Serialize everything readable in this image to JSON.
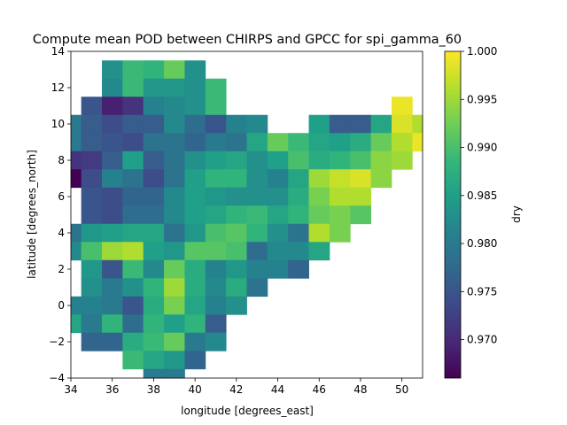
{
  "chart_data": {
    "type": "heatmap",
    "title": "Compute mean POD between CHIRPS and GPCC for spi_gamma_60",
    "xlabel": "longitude [degrees_east]",
    "ylabel": "latitude [degrees_north]",
    "xlim": [
      34,
      51
    ],
    "ylim": [
      -4,
      14
    ],
    "x_ticks": [
      "34",
      "36",
      "38",
      "40",
      "42",
      "44",
      "46",
      "48",
      "50"
    ],
    "y_ticks": [
      "−4",
      "−2",
      "0",
      "2",
      "4",
      "6",
      "8",
      "10",
      "12",
      "14"
    ],
    "cell_size": 1,
    "grid": false,
    "colormap": "viridis",
    "colorbar": {
      "label": "dry",
      "range": [
        0.966,
        1.0
      ],
      "ticks": [
        "0.970",
        "0.975",
        "0.980",
        "0.985",
        "0.990",
        "0.995",
        "1.000"
      ]
    },
    "rows": [
      {
        "lat": 13,
        "lon_start": 36,
        "values": [
          0.983,
          0.989,
          0.988,
          0.992,
          0.983
        ]
      },
      {
        "lat": 12,
        "lon_start": 36,
        "values": [
          0.982,
          0.989,
          0.984,
          0.984,
          0.983,
          0.989
        ]
      },
      {
        "lat": 11,
        "lon_start": 35,
        "values": [
          0.975,
          0.969,
          0.971,
          0.981,
          0.982,
          0.983,
          0.989,
          null,
          null,
          null,
          null,
          null,
          null,
          null,
          null,
          0.999
        ]
      },
      {
        "lat": 10,
        "lon_start": 34,
        "values": [
          0.98,
          0.976,
          0.974,
          0.976,
          0.976,
          0.982,
          0.978,
          0.975,
          0.981,
          0.982,
          null,
          null,
          0.985,
          0.976,
          0.976,
          0.986,
          0.998,
          0.996
        ]
      },
      {
        "lat": 9,
        "lon_start": 34,
        "values": [
          0.98,
          0.976,
          0.975,
          0.974,
          0.979,
          0.979,
          0.977,
          0.98,
          0.979,
          0.986,
          0.992,
          0.989,
          0.986,
          0.985,
          0.987,
          0.992,
          0.996,
          0.999
        ]
      },
      {
        "lat": 8,
        "lon_start": 34,
        "values": [
          0.971,
          0.972,
          0.976,
          0.985,
          0.976,
          0.979,
          0.983,
          0.985,
          0.986,
          0.983,
          0.985,
          0.99,
          0.987,
          0.988,
          0.99,
          0.994,
          0.995
        ]
      },
      {
        "lat": 7,
        "lon_start": 34,
        "values": [
          0.966,
          0.974,
          0.981,
          0.979,
          0.974,
          0.979,
          0.985,
          0.988,
          0.988,
          0.983,
          0.981,
          0.986,
          0.995,
          0.997,
          0.998,
          0.994
        ]
      },
      {
        "lat": 6,
        "lon_start": 35,
        "values": [
          0.975,
          0.974,
          0.977,
          0.977,
          0.982,
          0.985,
          0.984,
          0.983,
          0.983,
          0.983,
          0.987,
          0.993,
          0.996,
          0.996
        ]
      },
      {
        "lat": 5,
        "lon_start": 35,
        "values": [
          0.975,
          0.974,
          0.978,
          0.978,
          0.982,
          0.985,
          0.986,
          0.988,
          0.989,
          0.986,
          0.988,
          0.992,
          0.993,
          0.991
        ]
      },
      {
        "lat": 4,
        "lon_start": 34,
        "values": [
          0.979,
          0.984,
          0.985,
          0.986,
          0.986,
          0.979,
          0.984,
          0.99,
          0.991,
          0.988,
          0.983,
          0.979,
          0.996,
          0.993
        ]
      },
      {
        "lat": 3,
        "lon_start": 34,
        "values": [
          0.982,
          0.99,
          0.995,
          0.996,
          0.985,
          0.984,
          0.991,
          0.991,
          0.99,
          0.978,
          0.982,
          0.982,
          0.986
        ]
      },
      {
        "lat": 2,
        "lon_start": 35,
        "values": [
          0.984,
          0.975,
          0.989,
          0.982,
          0.992,
          0.987,
          0.981,
          0.984,
          0.981,
          0.981,
          0.977
        ]
      },
      {
        "lat": 1,
        "lon_start": 35,
        "values": [
          0.983,
          0.98,
          0.983,
          0.988,
          0.995,
          0.987,
          0.982,
          0.987,
          0.979
        ]
      },
      {
        "lat": 0,
        "lon_start": 34,
        "values": [
          0.981,
          0.981,
          0.98,
          0.975,
          0.987,
          0.993,
          0.986,
          0.981,
          0.983
        ]
      },
      {
        "lat": -1,
        "lon_start": 34,
        "values": [
          0.986,
          0.98,
          0.988,
          0.978,
          0.988,
          0.985,
          0.988,
          0.976
        ]
      },
      {
        "lat": -2,
        "lon_start": 35,
        "values": [
          0.977,
          0.977,
          0.987,
          0.989,
          0.992,
          0.98,
          0.982
        ]
      },
      {
        "lat": -3,
        "lon_start": 37,
        "values": [
          0.989,
          0.986,
          0.984,
          0.977
        ]
      },
      {
        "lat": -4,
        "lon_start": 38,
        "values": [
          0.98,
          0.98
        ]
      }
    ]
  }
}
